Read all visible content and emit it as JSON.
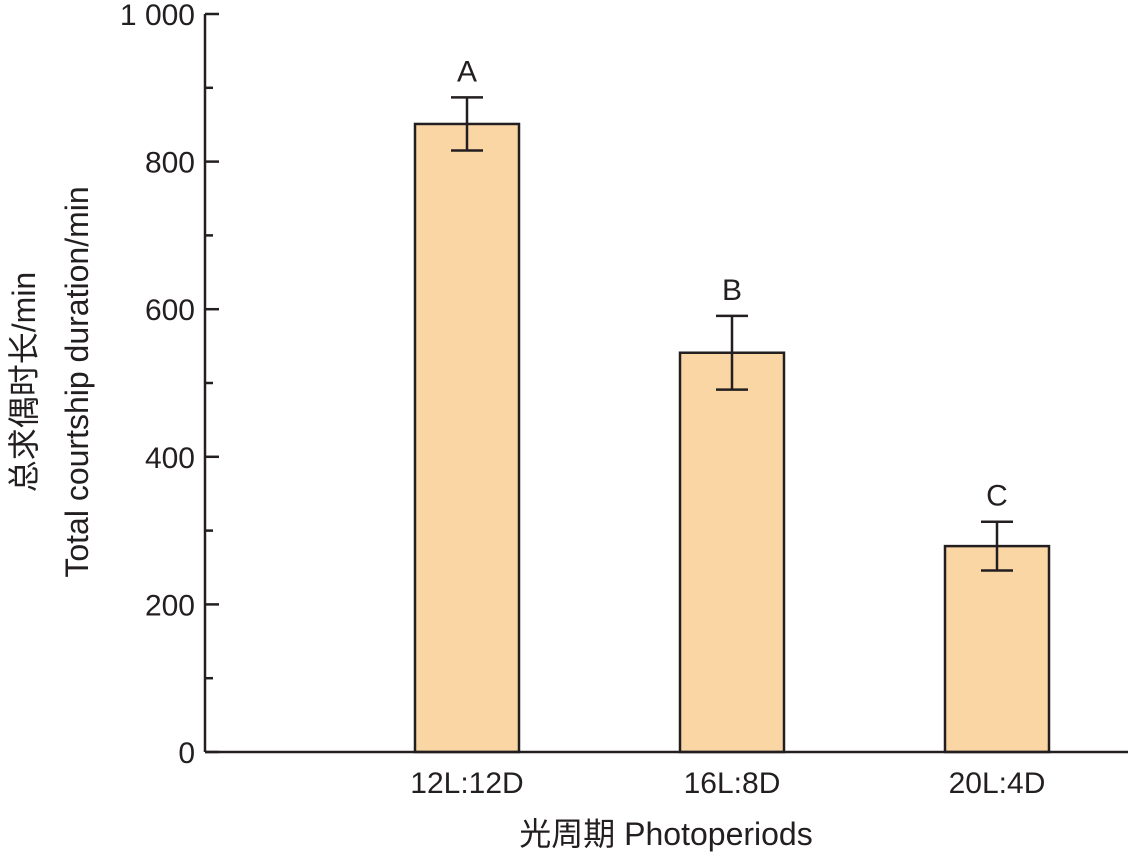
{
  "chart_data": {
    "type": "bar",
    "categories": [
      "12L:12D",
      "16L:8D",
      "20L:4D"
    ],
    "series": [
      {
        "values": [
          851,
          541,
          279
        ],
        "error": [
          36,
          50,
          33
        ],
        "significance": [
          "A",
          "B",
          "C"
        ]
      }
    ],
    "title": "",
    "xlabel": "光周期 Photoperiods",
    "ylabel_lines": [
      "总求偶时长/min",
      "Total courtship duration/min"
    ],
    "ylim": [
      0,
      1000
    ],
    "yticks": [
      0,
      200,
      400,
      600,
      800,
      1000
    ],
    "ytick_labels": [
      "0",
      "200",
      "400",
      "600",
      "800",
      "1 000"
    ],
    "grid": false,
    "legend": "none",
    "colors": {
      "bar_fill": "#fad6a5",
      "bar_stroke": "#231f20",
      "axis": "#231f20"
    }
  }
}
